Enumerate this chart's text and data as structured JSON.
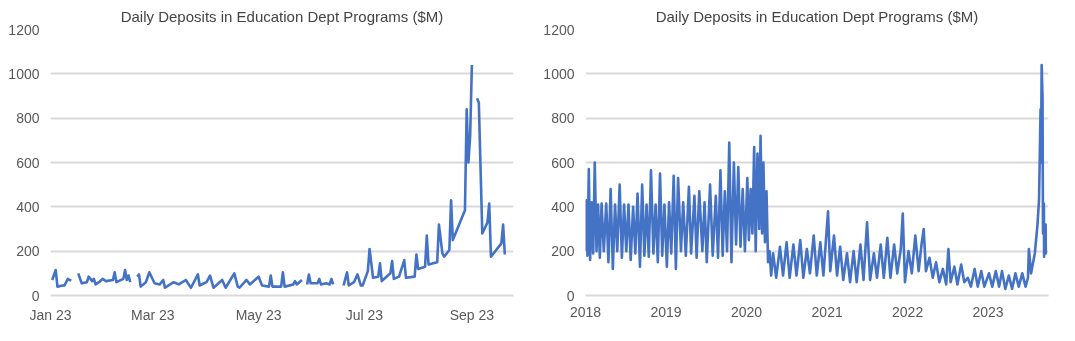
{
  "chart_data": [
    {
      "type": "line",
      "title": "Daily Deposits in Education Dept Programs ($M)",
      "color": "#4472c4",
      "grid": "y",
      "xlim": [
        "2023-01-01",
        "2023-09-25"
      ],
      "ylim": [
        0,
        1200
      ],
      "yticks": [
        0,
        200,
        400,
        600,
        800,
        1000,
        1200
      ],
      "xticks": [
        {
          "value": "2023-01-01",
          "label": "Jan 23"
        },
        {
          "value": "2023-03-01",
          "label": "Mar 23"
        },
        {
          "value": "2023-05-01",
          "label": "May 23"
        },
        {
          "value": "2023-07-01",
          "label": "Jul 23"
        },
        {
          "value": "2023-09-01",
          "label": "Sep 23"
        }
      ],
      "x": [
        "2023-01-02",
        "2023-01-04",
        "2023-01-05",
        "2023-01-08",
        "2023-01-09",
        "2023-01-11",
        "2023-01-12",
        "2023-01-13",
        "2023-01-15",
        "2023-01-17",
        "2023-01-19",
        "2023-01-22",
        "2023-01-23",
        "2023-01-25",
        "2023-01-26",
        "2023-01-27",
        "2023-01-29",
        "2023-01-31",
        "2023-02-02",
        "2023-02-06",
        "2023-02-07",
        "2023-02-08",
        "2023-02-12",
        "2023-02-13",
        "2023-02-14",
        "2023-02-15",
        "2023-02-16",
        "2023-02-18",
        "2023-02-20",
        "2023-02-21",
        "2023-02-22",
        "2023-02-25",
        "2023-02-27",
        "2023-03-02",
        "2023-03-05",
        "2023-03-07",
        "2023-03-08",
        "2023-03-13",
        "2023-03-16",
        "2023-03-20",
        "2023-03-23",
        "2023-03-27",
        "2023-03-28",
        "2023-04-01",
        "2023-04-03",
        "2023-04-05",
        "2023-04-10",
        "2023-04-12",
        "2023-04-17",
        "2023-04-19",
        "2023-04-20",
        "2023-04-24",
        "2023-04-26",
        "2023-05-01",
        "2023-05-03",
        "2023-05-07",
        "2023-05-08",
        "2023-05-09",
        "2023-05-14",
        "2023-05-15",
        "2023-05-16",
        "2023-05-21",
        "2023-05-22",
        "2023-05-23",
        "2023-05-26",
        "2023-05-27",
        "2023-05-29",
        "2023-05-30",
        "2023-05-31",
        "2023-06-04",
        "2023-06-05",
        "2023-06-06",
        "2023-06-09",
        "2023-06-11",
        "2023-06-12",
        "2023-06-13",
        "2023-06-14",
        "2023-06-19",
        "2023-06-21",
        "2023-06-22",
        "2023-06-25",
        "2023-06-27",
        "2023-06-29",
        "2023-06-30",
        "2023-07-03",
        "2023-07-04",
        "2023-07-06",
        "2023-07-09",
        "2023-07-10",
        "2023-07-11",
        "2023-07-16",
        "2023-07-17",
        "2023-07-18",
        "2023-07-21",
        "2023-07-24",
        "2023-07-25",
        "2023-07-30",
        "2023-07-31",
        "2023-08-01",
        "2023-08-05",
        "2023-08-06",
        "2023-08-07",
        "2023-08-12",
        "2023-08-13",
        "2023-08-15",
        "2023-08-16",
        "2023-08-19",
        "2023-08-20",
        "2023-08-21",
        "2023-08-28",
        "2023-08-29",
        "2023-08-30",
        "2023-08-31",
        "2023-09-01",
        "2023-09-02",
        "2023-09-04",
        "2023-09-05",
        "2023-09-07",
        "2023-09-10",
        "2023-09-11",
        "2023-09-12",
        "2023-09-18",
        "2023-09-19",
        "2023-09-20"
      ],
      "values": [
        70,
        115,
        40,
        45,
        45,
        75,
        70,
        68,
        null,
        100,
        55,
        60,
        85,
        65,
        75,
        50,
        60,
        75,
        65,
        70,
        105,
        60,
        75,
        115,
        70,
        90,
        60,
        null,
        85,
        95,
        40,
        60,
        105,
        55,
        50,
        70,
        35,
        60,
        50,
        70,
        35,
        95,
        45,
        60,
        90,
        35,
        70,
        35,
        100,
        40,
        35,
        70,
        50,
        85,
        45,
        40,
        90,
        40,
        40,
        105,
        40,
        50,
        65,
        50,
        70,
        null,
        50,
        95,
        55,
        55,
        75,
        50,
        55,
        50,
        75,
        50,
        null,
        45,
        105,
        45,
        60,
        95,
        45,
        45,
        110,
        210,
        80,
        85,
        145,
        65,
        100,
        155,
        75,
        85,
        160,
        80,
        85,
        185,
        120,
        130,
        270,
        140,
        150,
        320,
        190,
        175,
        205,
        430,
        250,
        385,
        840,
        600,
        720,
        1040,
        null,
        890,
        870,
        280,
        330,
        415,
        175,
        235,
        320,
        185
      ]
    },
    {
      "type": "line",
      "title": "Daily Deposits in Education Dept Programs ($M)",
      "color": "#4472c4",
      "grid": "y",
      "xlim": [
        "2018-01-01",
        "2023-10-02"
      ],
      "ylim": [
        0,
        1200
      ],
      "yticks": [
        0,
        200,
        400,
        600,
        800,
        1000,
        1200
      ],
      "xticks": [
        "2018",
        "2019",
        "2020",
        "2021",
        "2022",
        "2023"
      ],
      "x": [
        "2018-01-02",
        "2018-01-05",
        "2018-01-10",
        "2018-01-16",
        "2018-01-22",
        "2018-01-29",
        "2018-02-05",
        "2018-02-12",
        "2018-02-20",
        "2018-02-27",
        "2018-03-07",
        "2018-03-15",
        "2018-03-25",
        "2018-04-05",
        "2018-04-15",
        "2018-04-25",
        "2018-05-05",
        "2018-05-15",
        "2018-05-25",
        "2018-06-05",
        "2018-06-15",
        "2018-06-25",
        "2018-07-05",
        "2018-07-15",
        "2018-07-25",
        "2018-08-05",
        "2018-08-15",
        "2018-08-25",
        "2018-09-05",
        "2018-09-15",
        "2018-09-25",
        "2018-10-05",
        "2018-10-15",
        "2018-10-25",
        "2018-11-05",
        "2018-11-15",
        "2018-11-25",
        "2018-12-05",
        "2018-12-15",
        "2018-12-25",
        "2019-01-05",
        "2019-01-15",
        "2019-01-25",
        "2019-02-05",
        "2019-02-15",
        "2019-02-25",
        "2019-03-10",
        "2019-03-20",
        "2019-04-01",
        "2019-04-15",
        "2019-04-25",
        "2019-05-10",
        "2019-05-20",
        "2019-06-01",
        "2019-06-15",
        "2019-06-25",
        "2019-07-05",
        "2019-07-20",
        "2019-08-01",
        "2019-08-15",
        "2019-08-25",
        "2019-09-05",
        "2019-09-15",
        "2019-09-25",
        "2019-10-05",
        "2019-10-15",
        "2019-10-25",
        "2019-11-05",
        "2019-11-15",
        "2019-11-25",
        "2019-12-05",
        "2019-12-15",
        "2019-12-25",
        "2020-01-05",
        "2020-01-12",
        "2020-01-20",
        "2020-01-28",
        "2020-02-05",
        "2020-02-12",
        "2020-02-20",
        "2020-02-28",
        "2020-03-05",
        "2020-03-12",
        "2020-03-18",
        "2020-03-25",
        "2020-04-01",
        "2020-04-08",
        "2020-04-15",
        "2020-04-22",
        "2020-05-01",
        "2020-05-15",
        "2020-06-01",
        "2020-06-15",
        "2020-07-01",
        "2020-07-15",
        "2020-08-01",
        "2020-08-15",
        "2020-09-01",
        "2020-09-15",
        "2020-10-01",
        "2020-10-15",
        "2020-11-01",
        "2020-11-15",
        "2020-12-01",
        "2020-12-15",
        "2021-01-05",
        "2021-01-15",
        "2021-02-01",
        "2021-02-15",
        "2021-03-01",
        "2021-03-15",
        "2021-04-01",
        "2021-04-15",
        "2021-05-01",
        "2021-05-15",
        "2021-06-01",
        "2021-06-15",
        "2021-07-01",
        "2021-07-15",
        "2021-08-01",
        "2021-08-15",
        "2021-09-01",
        "2021-09-15",
        "2021-10-01",
        "2021-10-15",
        "2021-11-01",
        "2021-11-15",
        "2021-12-01",
        "2021-12-10",
        "2021-12-20",
        "2022-01-05",
        "2022-01-20",
        "2022-02-05",
        "2022-02-20",
        "2022-03-05",
        "2022-03-15",
        "2022-03-25",
        "2022-04-10",
        "2022-04-25",
        "2022-05-10",
        "2022-05-25",
        "2022-06-10",
        "2022-06-25",
        "2022-07-05",
        "2022-07-15",
        "2022-08-01",
        "2022-08-15",
        "2022-09-01",
        "2022-09-15",
        "2022-10-01",
        "2022-10-15",
        "2022-11-01",
        "2022-11-15",
        "2022-12-01",
        "2022-12-15",
        "2023-01-05",
        "2023-01-20",
        "2023-02-05",
        "2023-02-20",
        "2023-03-05",
        "2023-03-20",
        "2023-04-05",
        "2023-04-20",
        "2023-05-05",
        "2023-05-20",
        "2023-06-05",
        "2023-06-20",
        "2023-07-01",
        "2023-07-05",
        "2023-07-15",
        "2023-08-01",
        "2023-08-13",
        "2023-08-20",
        "2023-08-27",
        "2023-08-29",
        "2023-09-01",
        "2023-09-05",
        "2023-09-07",
        "2023-09-11",
        "2023-09-12",
        "2023-09-19",
        "2023-09-20"
      ],
      "values": [
        200,
        430,
        180,
        570,
        160,
        420,
        190,
        600,
        200,
        410,
        170,
        415,
        200,
        415,
        150,
        480,
        120,
        410,
        200,
        500,
        170,
        410,
        200,
        410,
        160,
        400,
        190,
        460,
        130,
        500,
        180,
        410,
        175,
        565,
        190,
        410,
        150,
        550,
        180,
        410,
        130,
        420,
        190,
        540,
        120,
        530,
        200,
        420,
        180,
        490,
        190,
        450,
        170,
        470,
        200,
        420,
        150,
        500,
        180,
        450,
        170,
        565,
        180,
        470,
        200,
        690,
        150,
        600,
        230,
        580,
        220,
        480,
        200,
        530,
        250,
        480,
        280,
        670,
        200,
        640,
        300,
        720,
        280,
        600,
        240,
        470,
        150,
        200,
        90,
        190,
        80,
        220,
        90,
        240,
        80,
        230,
        90,
        250,
        80,
        210,
        100,
        270,
        90,
        240,
        90,
        380,
        110,
        270,
        90,
        220,
        70,
        190,
        60,
        200,
        60,
        230,
        70,
        330,
        70,
        190,
        80,
        230,
        80,
        260,
        80,
        230,
        100,
        210,
        370,
        60,
        200,
        100,
        270,
        110,
        230,
        300,
        110,
        170,
        80,
        150,
        60,
        120,
        50,
        210,
        60,
        130,
        50,
        140,
        60,
        80,
        40,
        120,
        40,
        110,
        40,
        100,
        40,
        110,
        40,
        110,
        30,
        90,
        30,
        100,
        40,
        100,
        40,
        80,
        210,
        100,
        190,
        320,
        430,
        840,
        600,
        1040,
        890,
        280,
        415,
        175,
        320,
        185
      ]
    }
  ]
}
